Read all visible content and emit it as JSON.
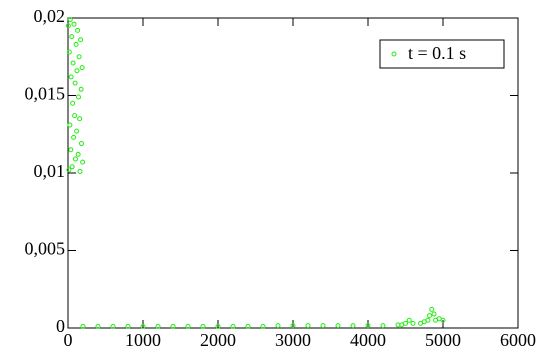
{
  "chart_data": {
    "type": "scatter",
    "x": [
      5,
      12,
      18,
      25,
      30,
      38,
      42,
      50,
      55,
      62,
      68,
      75,
      80,
      88,
      95,
      100,
      108,
      115,
      120,
      128,
      135,
      140,
      148,
      155,
      160,
      168,
      175,
      180,
      188,
      195,
      200,
      400,
      600,
      800,
      1000,
      1200,
      1400,
      1600,
      1800,
      2000,
      2200,
      2400,
      2600,
      2800,
      3000,
      3200,
      3400,
      3600,
      3800,
      4000,
      4200,
      4400,
      4450,
      4500,
      4550,
      4600,
      4700,
      4750,
      4800,
      4820,
      4850,
      4880,
      4900,
      4950,
      5000
    ],
    "series": [
      {
        "name": "t = 0.1 s",
        "color": "#22ee11",
        "values": [
          0.0195,
          0.0102,
          0.0178,
          0.0131,
          0.0199,
          0.0115,
          0.0162,
          0.0188,
          0.0104,
          0.0145,
          0.0171,
          0.0123,
          0.0196,
          0.0137,
          0.0158,
          0.0109,
          0.0183,
          0.0127,
          0.0166,
          0.0192,
          0.0112,
          0.0149,
          0.0175,
          0.0135,
          0.0101,
          0.0186,
          0.0154,
          0.0119,
          0.0168,
          0.0107,
          0.0001,
          0.0001,
          0.0001,
          0.0001,
          0.0001,
          0.0001,
          0.0001,
          0.0001,
          0.0001,
          0.0001,
          0.0001,
          0.0001,
          0.0001,
          0.00015,
          0.00015,
          0.00015,
          0.00015,
          0.00015,
          0.00015,
          0.00015,
          0.00015,
          0.0002,
          0.0002,
          0.0003,
          0.0005,
          0.0003,
          0.0003,
          0.0004,
          0.0005,
          0.0008,
          0.0012,
          0.0009,
          0.0005,
          0.0006,
          0.0005
        ]
      }
    ],
    "xlim": [
      0,
      6000
    ],
    "xticks": [
      0,
      1000,
      2000,
      3000,
      4000,
      5000,
      6000
    ],
    "ylim": [
      0,
      0.02
    ],
    "yticks": [
      0,
      {
        "value": 0.005,
        "label": "0,005"
      },
      {
        "value": 0.01,
        "label": "0,01"
      },
      {
        "value": 0.015,
        "label": "0,015"
      },
      {
        "value": 0.02,
        "label": "0,02"
      }
    ],
    "legend": "upper right"
  }
}
